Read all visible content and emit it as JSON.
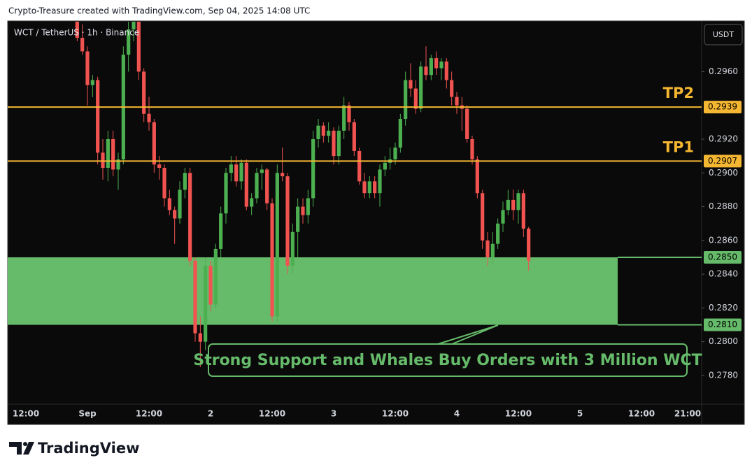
{
  "header": {
    "attribution": "Crypto-Treasure created with TradingView.com, Sep 04, 2025 14:08 UTC"
  },
  "footer": {
    "logo": "TradingView"
  },
  "chart_data": {
    "type": "candlestick",
    "title": "WCT / TetherUS · 1h · Binance",
    "currency": "USDT",
    "up_color": "#4caf50",
    "down_color": "#f05350",
    "grid": false,
    "categories": [
      null,
      null,
      null,
      "12:00",
      null,
      null,
      null,
      null,
      null,
      null,
      null,
      null,
      null,
      null,
      null,
      "Sep",
      null,
      null,
      null,
      null,
      null,
      null,
      null,
      null,
      null,
      null,
      null,
      "12:00",
      null,
      null,
      null,
      null,
      null,
      null,
      null,
      null,
      null,
      null,
      null,
      "2",
      null,
      null,
      null,
      null,
      null,
      null,
      null,
      null,
      null,
      null,
      null,
      "12:00",
      null,
      null,
      null,
      null,
      null,
      null,
      null,
      null,
      null,
      null,
      null,
      "3",
      null,
      null,
      null,
      null,
      null,
      null,
      null,
      null,
      null,
      null,
      null,
      "12:00",
      null,
      null,
      null,
      null,
      null,
      null,
      null,
      null,
      null,
      null,
      null,
      "4",
      null,
      null,
      null,
      null,
      null,
      null,
      null,
      null,
      null,
      null,
      null,
      "12:00",
      null,
      null,
      null,
      null,
      null,
      null,
      null,
      null,
      null,
      null,
      null,
      "5",
      null,
      null,
      null,
      null,
      null,
      null,
      null,
      null,
      null,
      null,
      null,
      "12:00",
      null,
      null,
      null,
      null,
      null,
      null,
      null,
      null,
      "21:00"
    ],
    "open": [
      null,
      null,
      null,
      null,
      null,
      null,
      null,
      null,
      null,
      null,
      null,
      null,
      null,
      0.2992,
      0.298,
      0.2972,
      0.2952,
      0.2955,
      0.2912,
      0.2903,
      0.292,
      0.2902,
      0.2908,
      0.297,
      0.2985,
      0.299,
      0.296,
      0.2935,
      0.293,
      0.2905,
      0.2903,
      0.2885,
      0.2878,
      0.2873,
      0.289,
      0.29,
      0.2848,
      0.2805,
      0.28,
      0.2845,
      0.2822,
      0.2855,
      0.2876,
      0.29,
      0.2905,
      0.2895,
      0.2906,
      0.288,
      0.2885,
      0.29,
      0.2902,
      0.2882,
      0.2815,
      0.29,
      0.2898,
      0.2845,
      0.2865,
      0.288,
      0.2875,
      0.2885,
      0.292,
      0.2928,
      0.2922,
      0.2925,
      0.291,
      0.2925,
      0.294,
      0.293,
      0.2913,
      0.2895,
      0.2888,
      0.2895,
      0.2888,
      0.2902,
      0.2906,
      0.2908,
      0.2915,
      0.2932,
      0.2955,
      0.295,
      0.2938,
      0.2963,
      0.2958,
      0.2968,
      0.2962,
      0.2966,
      0.2955,
      0.2945,
      0.294,
      0.2938,
      0.292,
      0.2908,
      0.2888,
      0.286,
      0.285,
      0.2858,
      0.287,
      0.2878,
      0.2884,
      0.2878,
      0.2888,
      0.2867,
      null,
      null,
      null,
      null,
      null,
      null,
      null,
      null,
      null,
      null,
      null,
      null,
      null,
      null,
      null,
      null,
      null,
      null,
      null,
      null,
      null,
      null,
      null,
      null,
      null,
      null,
      null,
      null,
      null,
      null,
      null
    ],
    "high": [
      null,
      null,
      null,
      null,
      null,
      null,
      null,
      null,
      null,
      null,
      null,
      null,
      null,
      0.2998,
      0.2988,
      0.2975,
      0.2958,
      0.2957,
      0.292,
      0.2925,
      0.2925,
      0.2912,
      0.2975,
      0.299,
      0.2995,
      0.2995,
      0.2962,
      0.2945,
      0.2932,
      0.291,
      0.2905,
      0.289,
      0.288,
      0.2895,
      0.2903,
      0.2903,
      0.285,
      0.2815,
      0.285,
      0.2848,
      0.2858,
      0.288,
      0.2903,
      0.291,
      0.291,
      0.2908,
      0.2908,
      0.2888,
      0.2903,
      0.2905,
      0.2903,
      0.2885,
      0.2905,
      0.2915,
      0.29,
      0.287,
      0.2885,
      0.2885,
      0.289,
      0.2925,
      0.2932,
      0.293,
      0.293,
      0.2927,
      0.2928,
      0.2945,
      0.2942,
      0.2932,
      0.2915,
      0.29,
      0.2898,
      0.2898,
      0.2905,
      0.291,
      0.2915,
      0.2918,
      0.2935,
      0.296,
      0.2965,
      0.2955,
      0.2966,
      0.2975,
      0.297,
      0.2972,
      0.2968,
      0.2968,
      0.296,
      0.2948,
      0.2945,
      0.294,
      0.2922,
      0.291,
      0.289,
      0.2865,
      0.2865,
      0.2873,
      0.2883,
      0.289,
      0.289,
      0.289,
      0.289,
      0.2868,
      null,
      null,
      null,
      null,
      null,
      null,
      null,
      null,
      null,
      null,
      null,
      null,
      null,
      null,
      null,
      null,
      null,
      null,
      null,
      null,
      null,
      null,
      null,
      null,
      null,
      null,
      null,
      null,
      null,
      null,
      null
    ],
    "low": [
      null,
      null,
      null,
      null,
      null,
      null,
      null,
      null,
      null,
      null,
      null,
      null,
      null,
      0.2978,
      0.297,
      0.294,
      0.2945,
      0.2905,
      0.2896,
      0.2895,
      0.2898,
      0.289,
      0.2905,
      0.296,
      0.2978,
      0.2955,
      0.293,
      0.2925,
      0.29,
      0.2896,
      0.288,
      0.2875,
      0.2858,
      0.287,
      0.2885,
      0.2845,
      0.28,
      0.2785,
      0.2795,
      0.2818,
      0.282,
      0.285,
      0.287,
      0.2895,
      0.2892,
      0.289,
      0.2878,
      0.2875,
      0.2882,
      0.289,
      0.2878,
      0.2812,
      0.2812,
      0.2895,
      0.284,
      0.284,
      0.285,
      0.287,
      0.287,
      0.288,
      0.2915,
      0.2918,
      0.2918,
      0.2905,
      0.2905,
      0.292,
      0.2925,
      0.291,
      0.2893,
      0.2885,
      0.2885,
      0.2885,
      0.288,
      0.2898,
      0.2902,
      0.2905,
      0.2912,
      0.2928,
      0.2945,
      0.2935,
      0.2936,
      0.2955,
      0.2955,
      0.2958,
      0.2955,
      0.295,
      0.294,
      0.2935,
      0.2925,
      0.2918,
      0.2905,
      0.2885,
      0.2855,
      0.2845,
      0.2846,
      0.2855,
      0.2865,
      0.2875,
      0.2872,
      0.287,
      0.2862,
      0.2842,
      null,
      null,
      null,
      null,
      null,
      null,
      null,
      null,
      null,
      null,
      null,
      null,
      null,
      null,
      null,
      null,
      null,
      null,
      null,
      null,
      null,
      null,
      null,
      null,
      null,
      null,
      null,
      null,
      null,
      null,
      null
    ],
    "close": [
      null,
      null,
      null,
      null,
      null,
      null,
      null,
      null,
      null,
      null,
      null,
      null,
      null,
      0.298,
      0.2972,
      0.2952,
      0.2955,
      0.2912,
      0.2903,
      0.292,
      0.2902,
      0.2908,
      0.297,
      0.2985,
      0.299,
      0.296,
      0.2935,
      0.293,
      0.2905,
      0.2903,
      0.2885,
      0.2878,
      0.2873,
      0.289,
      0.29,
      0.2848,
      0.2805,
      0.28,
      0.2845,
      0.2822,
      0.2855,
      0.2876,
      0.29,
      0.2905,
      0.2895,
      0.2906,
      0.288,
      0.2885,
      0.29,
      0.2902,
      0.2882,
      0.2815,
      0.29,
      0.2898,
      0.2845,
      0.2865,
      0.288,
      0.2875,
      0.2885,
      0.292,
      0.2928,
      0.2922,
      0.2925,
      0.291,
      0.2925,
      0.294,
      0.293,
      0.2913,
      0.2895,
      0.2888,
      0.2895,
      0.2888,
      0.2902,
      0.2906,
      0.2908,
      0.2915,
      0.2932,
      0.2955,
      0.295,
      0.2938,
      0.2963,
      0.2958,
      0.2968,
      0.2962,
      0.2966,
      0.2955,
      0.2945,
      0.294,
      0.2938,
      0.292,
      0.2908,
      0.2888,
      0.286,
      0.285,
      0.2858,
      0.287,
      0.2878,
      0.2884,
      0.2878,
      0.2888,
      0.2867,
      0.2848,
      null,
      null,
      null,
      null,
      null,
      null,
      null,
      null,
      null,
      null,
      null,
      null,
      null,
      null,
      null,
      null,
      null,
      null,
      null,
      null,
      null,
      null,
      null,
      null,
      null,
      null,
      null,
      null,
      null,
      null,
      null
    ],
    "ylim": [
      0.2763,
      0.299
    ],
    "yticks": [
      {
        "value": 0.296,
        "label": "0.2960"
      },
      {
        "value": 0.292,
        "label": "0.2920"
      },
      {
        "value": 0.29,
        "label": "0.2900"
      },
      {
        "value": 0.288,
        "label": "0.2880"
      },
      {
        "value": 0.286,
        "label": "0.2860"
      },
      {
        "value": 0.284,
        "label": "0.2840"
      },
      {
        "value": 0.282,
        "label": "0.2820"
      },
      {
        "value": 0.28,
        "label": "0.2800"
      },
      {
        "value": 0.278,
        "label": "0.2780"
      }
    ],
    "levels": [
      {
        "name": "TP2",
        "value": 0.2939,
        "value_label": "0.2939",
        "color": "#f5b731"
      },
      {
        "name": "TP1",
        "value": 0.2907,
        "value_label": "0.2907",
        "color": "#f5b731"
      }
    ],
    "zone": {
      "high": 0.285,
      "high_label": "0.2850",
      "low": 0.281,
      "low_label": "0.2810",
      "color": "#66bb6a"
    },
    "annotation": "Strong Support and Whales Buy Orders with 3 Million WCT"
  }
}
